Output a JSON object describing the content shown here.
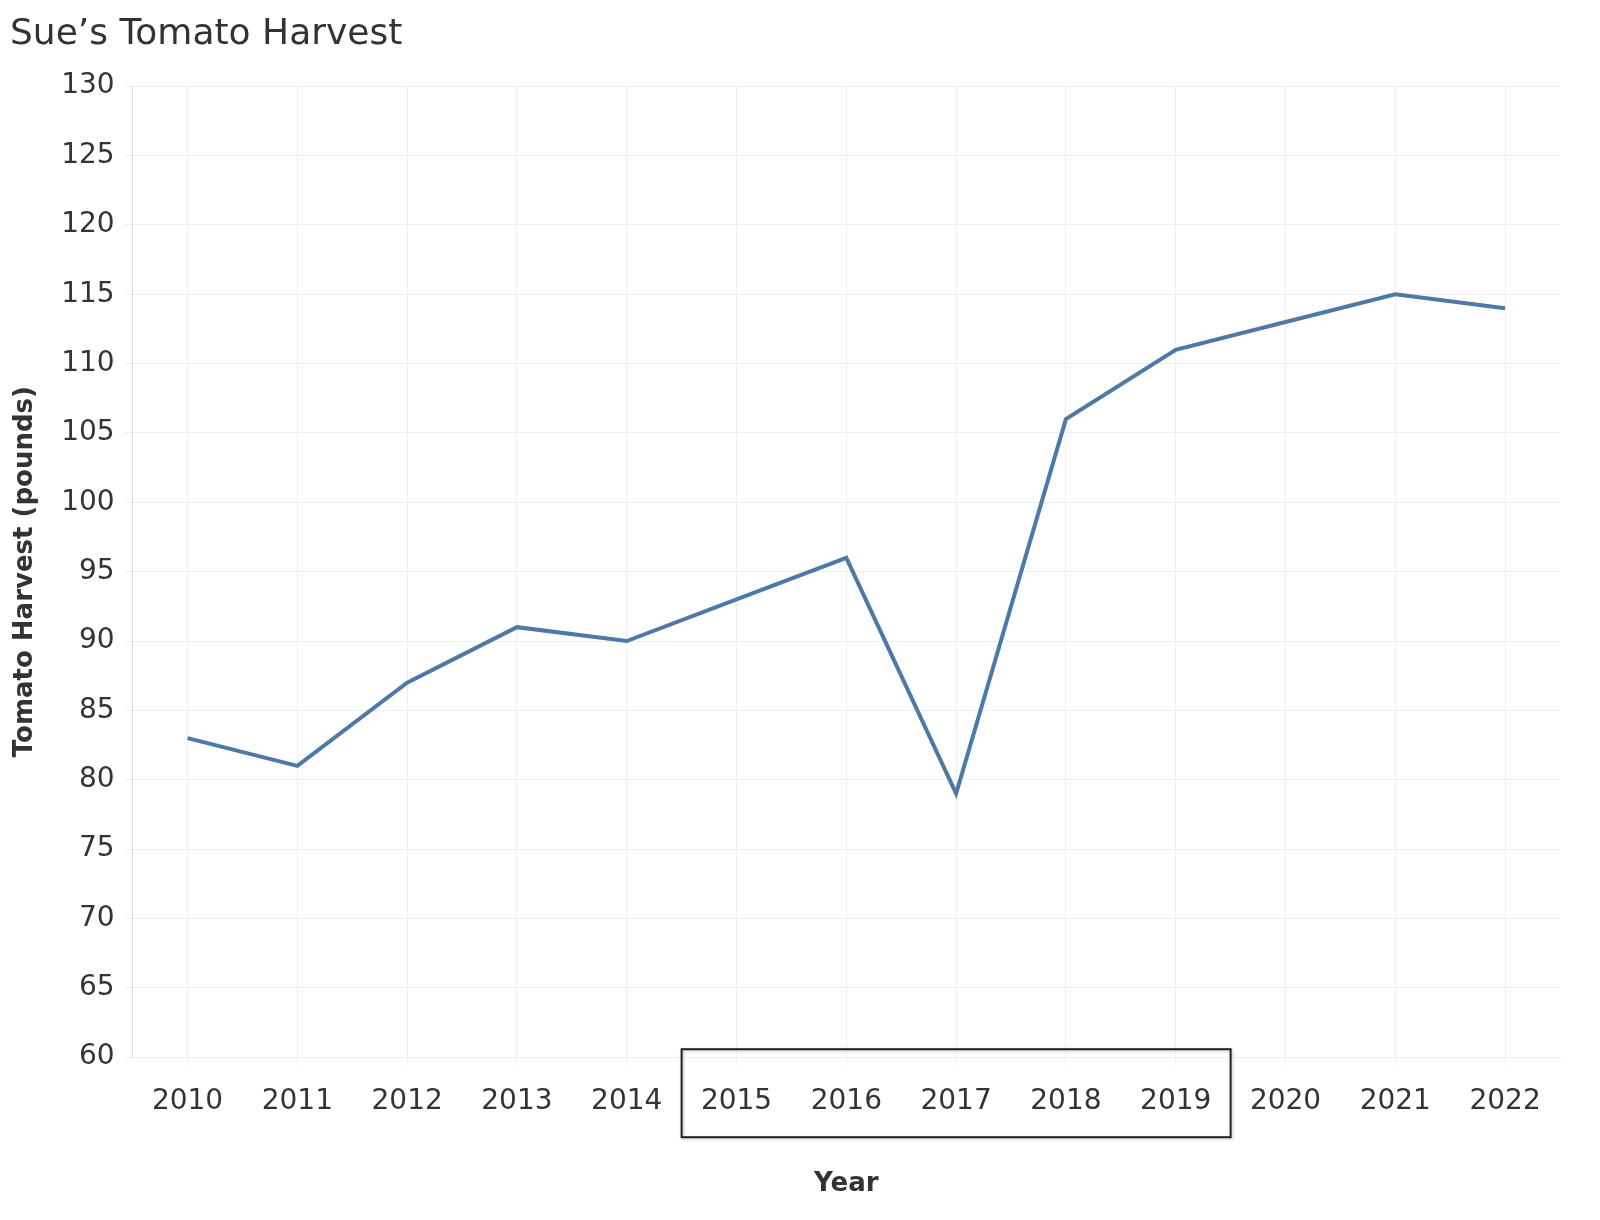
{
  "chart_data": {
    "type": "line",
    "title": "Sue’s Tomato Harvest",
    "x_label": "Year",
    "y_label": "Tomato Harvest (pounds)",
    "categories": [
      "2010",
      "2011",
      "2012",
      "2013",
      "2014",
      "2015",
      "2016",
      "2017",
      "2018",
      "2019",
      "2020",
      "2021",
      "2022"
    ],
    "values": [
      83,
      81,
      87,
      91,
      90,
      93,
      96,
      79,
      106,
      111,
      113,
      115,
      114
    ],
    "color": "#4e79a7",
    "ylim": [
      60,
      130
    ],
    "yticks": [
      60,
      65,
      70,
      75,
      80,
      85,
      90,
      95,
      100,
      105,
      110,
      115,
      120,
      125,
      130
    ],
    "grid": true,
    "highlight": {
      "from": "2015",
      "to": "2019"
    }
  }
}
